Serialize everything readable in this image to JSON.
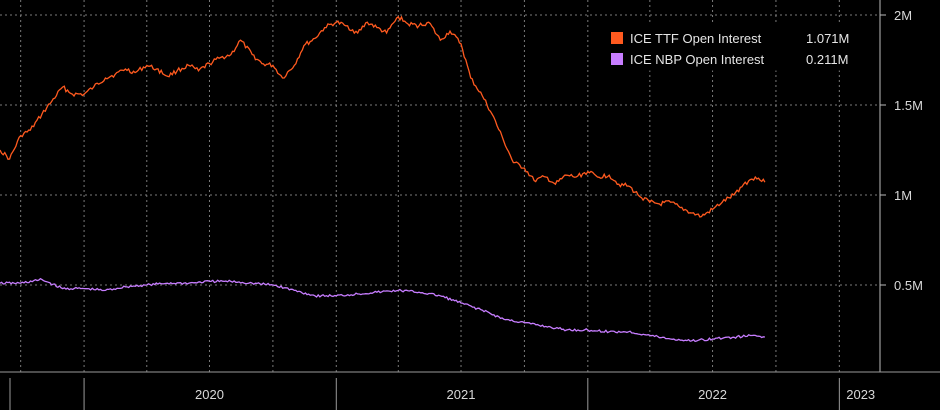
{
  "chart_data": {
    "type": "line",
    "x_ticks": [
      "2020",
      "2021",
      "2022",
      "2023"
    ],
    "y_ticks": [
      "2M",
      "1.5M",
      "1M",
      "0.5M"
    ],
    "y_tick_values": [
      2000000,
      1500000,
      1000000,
      500000
    ],
    "ylim": [
      0,
      2050000
    ],
    "grid": true,
    "legend_position": "top-right",
    "series": [
      {
        "name": "ICE TTF Open Interest",
        "last_value_label": "1.071M",
        "color": "#ff5a1f",
        "points": [
          [
            "2019-09-01",
            1250000
          ],
          [
            "2019-09-15",
            1200000
          ],
          [
            "2019-10-01",
            1330000
          ],
          [
            "2019-10-15",
            1360000
          ],
          [
            "2019-11-01",
            1450000
          ],
          [
            "2019-11-15",
            1520000
          ],
          [
            "2019-12-01",
            1600000
          ],
          [
            "2019-12-15",
            1560000
          ],
          [
            "2020-01-01",
            1560000
          ],
          [
            "2020-01-15",
            1600000
          ],
          [
            "2020-02-01",
            1650000
          ],
          [
            "2020-02-15",
            1670000
          ],
          [
            "2020-03-01",
            1700000
          ],
          [
            "2020-03-15",
            1680000
          ],
          [
            "2020-04-01",
            1720000
          ],
          [
            "2020-04-15",
            1700000
          ],
          [
            "2020-05-01",
            1660000
          ],
          [
            "2020-05-15",
            1690000
          ],
          [
            "2020-06-01",
            1720000
          ],
          [
            "2020-06-15",
            1690000
          ],
          [
            "2020-07-01",
            1730000
          ],
          [
            "2020-07-15",
            1760000
          ],
          [
            "2020-08-01",
            1780000
          ],
          [
            "2020-08-15",
            1860000
          ],
          [
            "2020-09-01",
            1780000
          ],
          [
            "2020-09-15",
            1730000
          ],
          [
            "2020-10-01",
            1720000
          ],
          [
            "2020-10-15",
            1650000
          ],
          [
            "2020-11-01",
            1720000
          ],
          [
            "2020-11-15",
            1830000
          ],
          [
            "2020-12-01",
            1870000
          ],
          [
            "2020-12-15",
            1930000
          ],
          [
            "2021-01-01",
            1960000
          ],
          [
            "2021-01-15",
            1940000
          ],
          [
            "2021-02-01",
            1900000
          ],
          [
            "2021-02-15",
            1960000
          ],
          [
            "2021-03-01",
            1930000
          ],
          [
            "2021-03-15",
            1900000
          ],
          [
            "2021-04-01",
            1990000
          ],
          [
            "2021-04-15",
            1950000
          ],
          [
            "2021-05-01",
            1940000
          ],
          [
            "2021-05-15",
            1960000
          ],
          [
            "2021-06-01",
            1860000
          ],
          [
            "2021-06-15",
            1910000
          ],
          [
            "2021-07-01",
            1840000
          ],
          [
            "2021-07-15",
            1650000
          ],
          [
            "2021-08-01",
            1550000
          ],
          [
            "2021-08-15",
            1450000
          ],
          [
            "2021-09-01",
            1300000
          ],
          [
            "2021-09-15",
            1180000
          ],
          [
            "2021-10-01",
            1150000
          ],
          [
            "2021-10-15",
            1080000
          ],
          [
            "2021-11-01",
            1100000
          ],
          [
            "2021-11-15",
            1060000
          ],
          [
            "2021-12-01",
            1110000
          ],
          [
            "2021-12-15",
            1100000
          ],
          [
            "2022-01-01",
            1130000
          ],
          [
            "2022-01-15",
            1100000
          ],
          [
            "2022-02-01",
            1110000
          ],
          [
            "2022-02-15",
            1060000
          ],
          [
            "2022-03-01",
            1050000
          ],
          [
            "2022-03-15",
            1000000
          ],
          [
            "2022-04-01",
            960000
          ],
          [
            "2022-04-15",
            950000
          ],
          [
            "2022-05-01",
            960000
          ],
          [
            "2022-05-15",
            930000
          ],
          [
            "2022-06-01",
            900000
          ],
          [
            "2022-06-15",
            880000
          ],
          [
            "2022-07-01",
            920000
          ],
          [
            "2022-07-15",
            960000
          ],
          [
            "2022-08-01",
            1000000
          ],
          [
            "2022-08-15",
            1060000
          ],
          [
            "2022-09-01",
            1100000
          ],
          [
            "2022-09-15",
            1071000
          ]
        ]
      },
      {
        "name": "ICE NBP Open Interest",
        "last_value_label": "0.211M",
        "color": "#c77dff",
        "points": [
          [
            "2019-09-01",
            510000
          ],
          [
            "2019-10-01",
            510000
          ],
          [
            "2019-11-01",
            530000
          ],
          [
            "2019-12-01",
            480000
          ],
          [
            "2020-01-01",
            480000
          ],
          [
            "2020-02-01",
            470000
          ],
          [
            "2020-03-01",
            490000
          ],
          [
            "2020-04-01",
            500000
          ],
          [
            "2020-05-01",
            510000
          ],
          [
            "2020-06-01",
            510000
          ],
          [
            "2020-07-01",
            520000
          ],
          [
            "2020-08-01",
            520000
          ],
          [
            "2020-09-01",
            510000
          ],
          [
            "2020-10-01",
            500000
          ],
          [
            "2020-11-01",
            470000
          ],
          [
            "2020-12-01",
            440000
          ],
          [
            "2021-01-01",
            440000
          ],
          [
            "2021-02-01",
            450000
          ],
          [
            "2021-03-01",
            460000
          ],
          [
            "2021-04-01",
            470000
          ],
          [
            "2021-05-01",
            460000
          ],
          [
            "2021-06-01",
            440000
          ],
          [
            "2021-07-01",
            400000
          ],
          [
            "2021-08-01",
            360000
          ],
          [
            "2021-09-01",
            310000
          ],
          [
            "2021-10-01",
            290000
          ],
          [
            "2021-11-01",
            270000
          ],
          [
            "2021-12-01",
            250000
          ],
          [
            "2022-01-01",
            250000
          ],
          [
            "2022-02-01",
            240000
          ],
          [
            "2022-03-01",
            240000
          ],
          [
            "2022-04-01",
            220000
          ],
          [
            "2022-05-01",
            200000
          ],
          [
            "2022-06-01",
            190000
          ],
          [
            "2022-07-01",
            200000
          ],
          [
            "2022-08-01",
            210000
          ],
          [
            "2022-09-01",
            220000
          ],
          [
            "2022-09-15",
            211000
          ]
        ]
      }
    ]
  }
}
